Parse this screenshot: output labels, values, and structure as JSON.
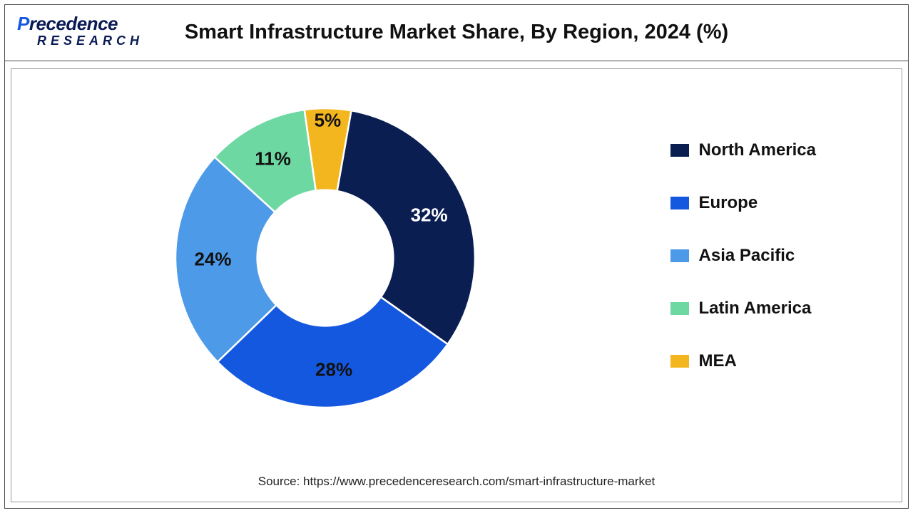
{
  "logo": {
    "line1_pre": "P",
    "line1_post": "recedence",
    "line2": "RESEARCH"
  },
  "title": "Smart Infrastructure Market Share, By Region, 2024 (%)",
  "chart": {
    "type": "donut",
    "inner_radius_ratio": 0.46,
    "start_angle_deg": 10,
    "background_color": "#ffffff",
    "slices": [
      {
        "label": "North America",
        "value": 32,
        "color": "#0a1e52",
        "pct_text": "32%"
      },
      {
        "label": "Europe",
        "value": 28,
        "color": "#1558e0",
        "pct_text": "28%"
      },
      {
        "label": "Asia Pacific",
        "value": 24,
        "color": "#4d9ae8",
        "pct_text": "24%"
      },
      {
        "label": "Latin America",
        "value": 11,
        "color": "#6dd8a2",
        "pct_text": "11%"
      },
      {
        "label": "MEA",
        "value": 5,
        "color": "#f3b61f",
        "pct_text": "5%"
      }
    ],
    "label_fontsize": 26,
    "label_fontweight": 700,
    "label_radius_ratio": 0.75,
    "mea_label_radius_ratio": 0.92
  },
  "legend": {
    "fontsize": 24,
    "fontweight": 700,
    "swatch_w": 26,
    "swatch_h": 18
  },
  "source": "Source: https://www.precedenceresearch.com/smart-infrastructure-market"
}
